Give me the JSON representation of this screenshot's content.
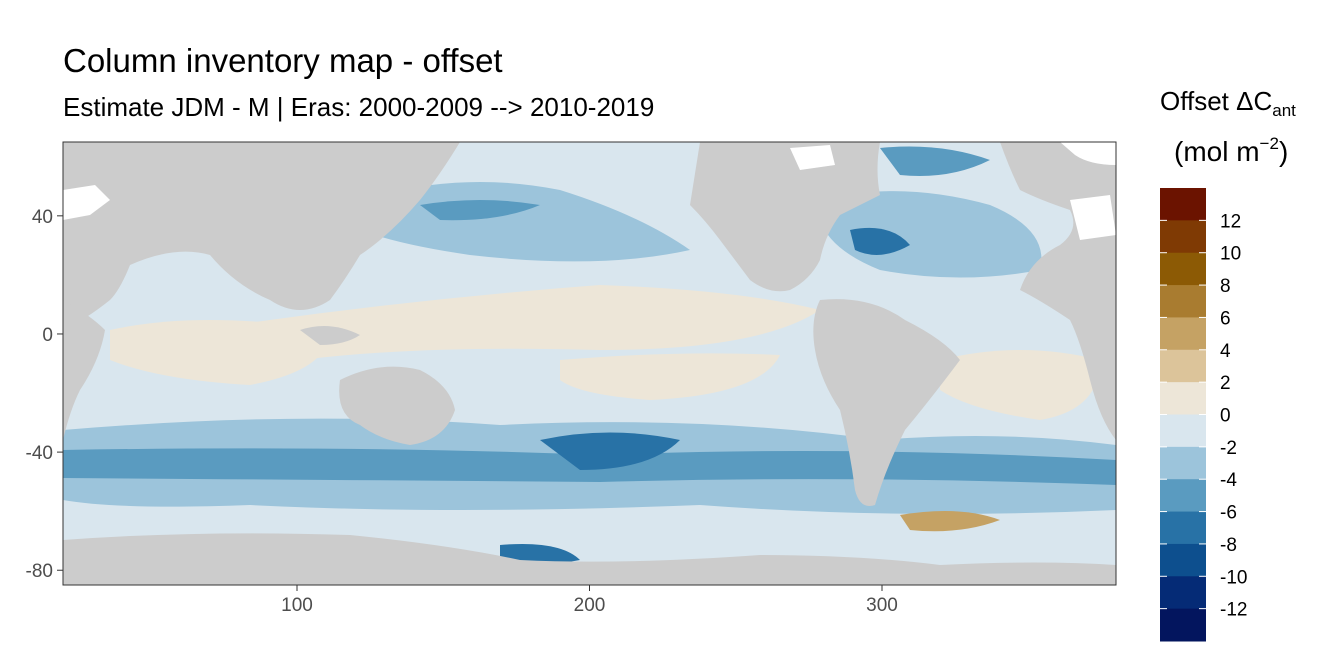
{
  "chart_data": {
    "type": "heatmap",
    "title": "Column inventory map - offset",
    "subtitle": "Estimate JDM - M | Eras: 2000-2009 --> 2010-2019",
    "x_ticks": [
      100,
      200,
      300
    ],
    "y_ticks": [
      40,
      0,
      -40,
      -80
    ],
    "xlim": [
      20,
      380
    ],
    "ylim": [
      -85,
      65
    ],
    "legend": {
      "title_main": "Offset ΔC",
      "title_sub": "ant",
      "unit_main": "(mol m",
      "unit_sup": "−2",
      "unit_end": ")",
      "placement": "right",
      "breaks": [
        12,
        10,
        8,
        6,
        4,
        2,
        0,
        -2,
        -4,
        -6,
        -8,
        -10,
        -12
      ],
      "labels": [
        "12",
        "10",
        "8",
        "6",
        "4",
        "2",
        "0",
        "-2",
        "-4",
        "-6",
        "-8",
        "-10",
        "-12"
      ],
      "colors": [
        "#6b1300",
        "#7f3a04",
        "#8c5a05",
        "#a97c30",
        "#c5a264",
        "#dcc49a",
        "#ede6d8",
        "#d9e6ee",
        "#9cc4db",
        "#5a9bc0",
        "#2872a6",
        "#0d4f8e",
        "#052b76",
        "#03155e"
      ]
    },
    "background_colors": {
      "land": "#cccccc",
      "ocean_neutral": "#d9e6ee",
      "missing": "#ffffff"
    }
  }
}
